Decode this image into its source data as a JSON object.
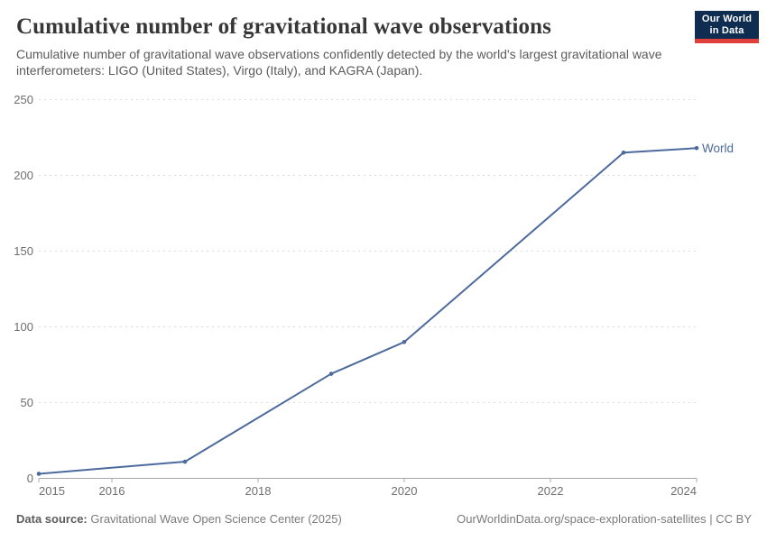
{
  "header": {
    "title": "Cumulative number of gravitational wave observations",
    "subtitle": "Cumulative number of gravitational wave observations confidently detected by the world's largest gravitational wave interferometers: LIGO (United States), Virgo (Italy), and KAGRA (Japan).",
    "logo": {
      "line1": "Our World",
      "line2": "in Data",
      "bg_color": "#0e2d51",
      "accent_color": "#e0403c"
    }
  },
  "chart_data": {
    "type": "line",
    "title": "Cumulative number of gravitational wave observations",
    "series": [
      {
        "name": "World",
        "color": "#4c6a9c",
        "x": [
          2015,
          2017,
          2019,
          2020,
          2023,
          2024
        ],
        "values": [
          3,
          11,
          69,
          90,
          215,
          218
        ]
      }
    ],
    "xlim": [
      2015,
      2024
    ],
    "ylim": [
      0,
      250
    ],
    "x_ticks": [
      2015,
      2016,
      2018,
      2020,
      2022,
      2024
    ],
    "y_ticks": [
      0,
      50,
      100,
      150,
      200,
      250
    ],
    "grid": "horizontal-dashed",
    "end_label": "World",
    "colors": {
      "line": "#4c6a9c",
      "gridline": "#dcdcdc",
      "axis": "#a8a8a8",
      "tick_label": "#6e6e6e"
    }
  },
  "footer": {
    "source_label": "Data source:",
    "source_value": "Gravitational Wave Open Science Center (2025)",
    "attribution": "OurWorldinData.org/space-exploration-satellites | CC BY"
  }
}
